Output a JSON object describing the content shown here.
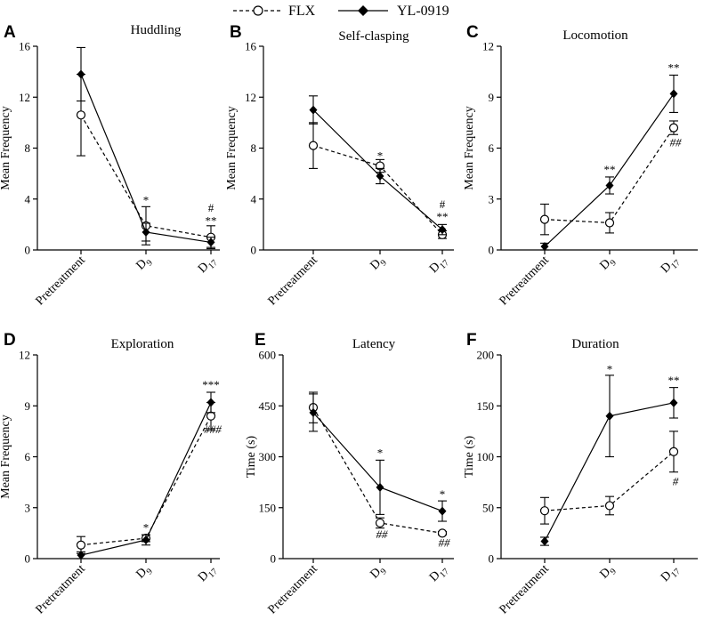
{
  "legend": {
    "flx": "FLX",
    "yl": "YL-0919"
  },
  "chart_data": [
    {
      "letter": "A",
      "title": "Huddling",
      "type": "line",
      "ylabel": "Mean Frequency",
      "ylim": [
        0,
        16
      ],
      "yticks": [
        0,
        4,
        8,
        12,
        16
      ],
      "categories": [
        "Pretreatment",
        "D9",
        "D17"
      ],
      "category_subscripts": [
        "",
        "9",
        "17"
      ],
      "series": [
        {
          "name": "FLX",
          "values": [
            10.6,
            1.9,
            1.0
          ],
          "errors": [
            3.2,
            1.5,
            0.9
          ]
        },
        {
          "name": "YL-0919",
          "values": [
            13.8,
            1.4,
            0.6
          ],
          "errors": [
            2.1,
            0.7,
            0.4
          ]
        }
      ],
      "annotations": [
        {
          "category": 1,
          "text": "*",
          "value": 3.6
        },
        {
          "category": 2,
          "text": "**",
          "value": 2.0
        },
        {
          "category": 2,
          "text": "#",
          "value": 3.0
        }
      ]
    },
    {
      "letter": "B",
      "title": "Self-clasping",
      "type": "line",
      "ylabel": "Mean Frequency",
      "ylim": [
        0,
        16
      ],
      "yticks": [
        0,
        4,
        8,
        12,
        16
      ],
      "categories": [
        "Pretreatment",
        "D9",
        "D17"
      ],
      "category_subscripts": [
        "",
        "9",
        "17"
      ],
      "series": [
        {
          "name": "FLX",
          "values": [
            8.2,
            6.6,
            1.2
          ],
          "errors": [
            1.8,
            0.5,
            0.3
          ]
        },
        {
          "name": "YL-0919",
          "values": [
            11.0,
            5.8,
            1.6
          ],
          "errors": [
            1.1,
            0.6,
            0.4
          ]
        }
      ],
      "annotations": [
        {
          "category": 1,
          "text": "*",
          "value": 7.1
        },
        {
          "category": 2,
          "text": "**",
          "value": 2.3
        },
        {
          "category": 2,
          "text": "#",
          "value": 3.3
        }
      ]
    },
    {
      "letter": "C",
      "title": "Locomotion",
      "type": "line",
      "ylabel": "Mean Frequency",
      "ylim": [
        0,
        12
      ],
      "yticks": [
        0,
        3,
        6,
        9,
        12
      ],
      "categories": [
        "Pretreatment",
        "D9",
        "D17"
      ],
      "category_subscripts": [
        "",
        "9",
        "17"
      ],
      "series": [
        {
          "name": "FLX",
          "values": [
            1.8,
            1.6,
            7.2
          ],
          "errors": [
            0.9,
            0.6,
            0.4
          ]
        },
        {
          "name": "YL-0919",
          "values": [
            0.2,
            3.8,
            9.2
          ],
          "errors": [
            0.2,
            0.5,
            1.1
          ]
        }
      ],
      "annotations": [
        {
          "category": 1,
          "text": "**",
          "value": 4.5
        },
        {
          "category": 2,
          "text": "**",
          "value": 10.5
        },
        {
          "category": 2,
          "text": "##",
          "value": 6.1,
          "below": true
        }
      ]
    },
    {
      "letter": "D",
      "title": "Exploration",
      "type": "line",
      "ylabel": "Mean Frequency",
      "ylim": [
        0,
        12
      ],
      "yticks": [
        0,
        3,
        6,
        9,
        12
      ],
      "categories": [
        "Pretreatment",
        "D9",
        "D17"
      ],
      "category_subscripts": [
        "",
        "9",
        "17"
      ],
      "series": [
        {
          "name": "FLX",
          "values": [
            0.8,
            1.2,
            8.4
          ],
          "errors": [
            0.5,
            0.2,
            0.8
          ]
        },
        {
          "name": "YL-0919",
          "values": [
            0.2,
            1.1,
            9.2
          ],
          "errors": [
            0.2,
            0.3,
            0.6
          ]
        }
      ],
      "annotations": [
        {
          "category": 1,
          "text": "*",
          "value": 1.6
        },
        {
          "category": 2,
          "text": "***",
          "value": 10.0
        },
        {
          "category": 2,
          "text": "###",
          "value": 7.4,
          "below": true
        }
      ]
    },
    {
      "letter": "E",
      "title": "Latency",
      "type": "line",
      "ylabel": "Time (s)",
      "ylim": [
        0,
        600
      ],
      "yticks": [
        0,
        150,
        300,
        450,
        600
      ],
      "categories": [
        "Pretreatment",
        "D9",
        "D17"
      ],
      "category_subscripts": [
        "",
        "9",
        "17"
      ],
      "series": [
        {
          "name": "FLX",
          "values": [
            445,
            105,
            75
          ],
          "errors": [
            45,
            15,
            5
          ]
        },
        {
          "name": "YL-0919",
          "values": [
            430,
            210,
            140
          ],
          "errors": [
            55,
            80,
            30
          ]
        }
      ],
      "annotations": [
        {
          "category": 1,
          "text": "*",
          "value": 300
        },
        {
          "category": 2,
          "text": "*",
          "value": 178
        },
        {
          "category": 1,
          "text": "##",
          "value": 60,
          "below": true
        },
        {
          "category": 2,
          "text": "##",
          "value": 36,
          "below": true
        }
      ]
    },
    {
      "letter": "F",
      "title": "Duration",
      "type": "line",
      "ylabel": "Time (s)",
      "ylim": [
        0,
        200
      ],
      "yticks": [
        0,
        50,
        100,
        150,
        200
      ],
      "categories": [
        "Pretreatment",
        "D9",
        "D17"
      ],
      "category_subscripts": [
        "",
        "9",
        "17"
      ],
      "series": [
        {
          "name": "FLX",
          "values": [
            47,
            52,
            105
          ],
          "errors": [
            13,
            9,
            20
          ]
        },
        {
          "name": "YL-0919",
          "values": [
            17,
            140,
            153
          ],
          "errors": [
            4,
            40,
            15
          ]
        }
      ],
      "annotations": [
        {
          "category": 1,
          "text": "*",
          "value": 182
        },
        {
          "category": 2,
          "text": "**",
          "value": 171
        },
        {
          "category": 2,
          "text": "#",
          "value": 72,
          "below": true
        }
      ]
    }
  ]
}
